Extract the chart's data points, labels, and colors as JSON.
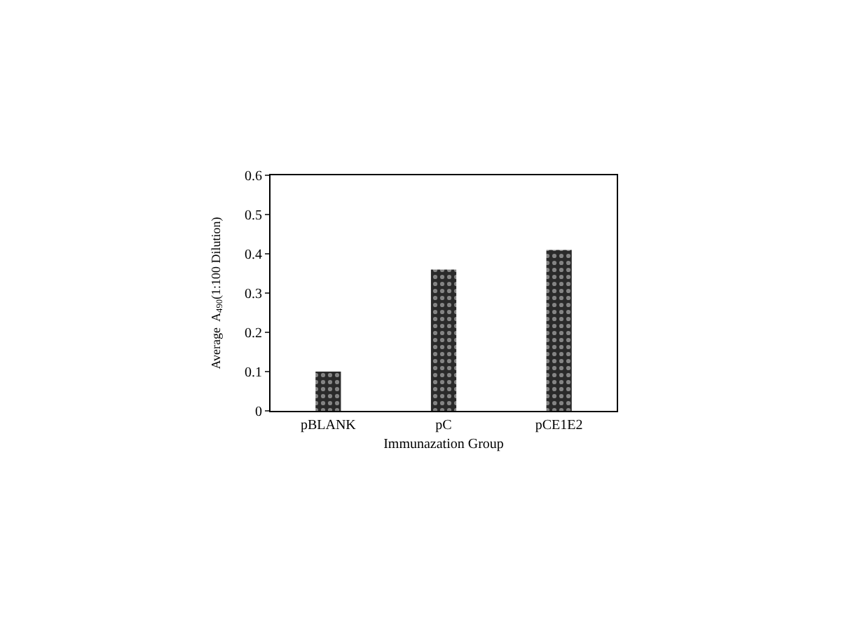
{
  "chart_data": {
    "type": "bar",
    "xlabel": "Immunazation Group",
    "ylabel": "Average  A$_{490}$(1:100 Dilution)",
    "categories": [
      "pBLANK",
      "pC",
      "pCE1E2"
    ],
    "values": [
      0.1,
      0.36,
      0.41
    ],
    "color": "#2a2a2a",
    "ylim": [
      0,
      0.6
    ],
    "yticks": [
      0,
      0.1,
      0.2,
      0.3,
      0.4,
      0.5,
      0.6
    ]
  }
}
